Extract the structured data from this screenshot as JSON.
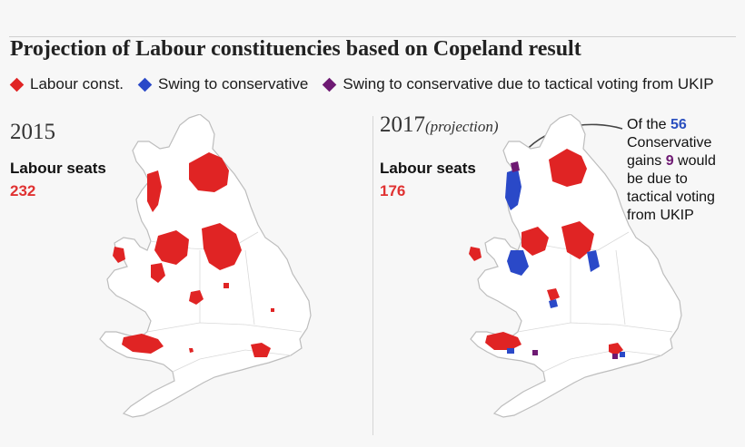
{
  "title": "Projection of Labour constituencies based on Copeland result",
  "legend": [
    {
      "label": "Labour const.",
      "color": "#e02424"
    },
    {
      "label": "Swing to conservative",
      "color": "#2a49c8"
    },
    {
      "label": "Swing to conservative due to tactical voting from UKIP",
      "color": "#6e1a73"
    }
  ],
  "panels": [
    {
      "year": "2015",
      "subtitle": "",
      "seats_label": "Labour seats",
      "seats_value": "232"
    },
    {
      "year": "2017",
      "subtitle": "(projection)",
      "seats_label": "Labour seats",
      "seats_value": "176"
    }
  ],
  "annotation": {
    "prefix": "Of the ",
    "total_gains": "56",
    "middle": " Conservative gains ",
    "tactical": "9",
    "suffix": " would be due to tactical voting from UKIP"
  },
  "colors": {
    "labour": "#e02424",
    "conservative": "#2a49c8",
    "ukip": "#6e1a73",
    "land": "#ffffff",
    "border": "#bdbdbd"
  }
}
